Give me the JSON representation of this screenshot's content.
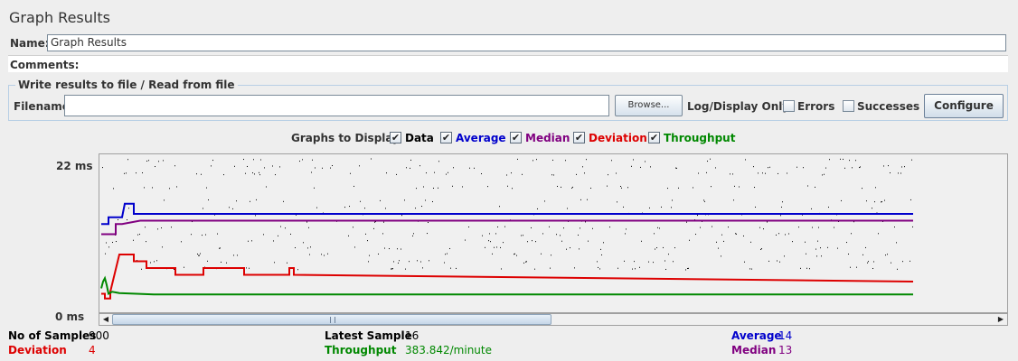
{
  "panel": {
    "title": "Graph Results",
    "name_label": "Name:",
    "name_value": "Graph Results",
    "comments_label": "Comments:"
  },
  "file": {
    "legend": "Write results to file / Read from file",
    "filename_label": "Filename",
    "filename_value": "",
    "browse_label": "Browse...",
    "log_display_label": "Log/Display Only:",
    "errors_label": "Errors",
    "errors_checked": false,
    "successes_label": "Successes",
    "successes_checked": false,
    "configure_label": "Configure"
  },
  "graphs_to_display": {
    "label": "Graphs to Display",
    "items": [
      {
        "label": "Data",
        "checked": true,
        "color": "#000000"
      },
      {
        "label": "Average",
        "checked": true,
        "color": "#0000cc"
      },
      {
        "label": "Median",
        "checked": true,
        "color": "#800080"
      },
      {
        "label": "Deviation",
        "checked": true,
        "color": "#dd0000"
      },
      {
        "label": "Throughput",
        "checked": true,
        "color": "#008800"
      }
    ]
  },
  "chart_data": {
    "type": "scatter",
    "y_top_label": "22 ms",
    "y_bottom_label": "0 ms",
    "ylim": [
      0,
      22
    ],
    "data_levels_ms": [
      6,
      7,
      8,
      9,
      10,
      11,
      12,
      13,
      14,
      15,
      16,
      18,
      20,
      21,
      22
    ],
    "series": [
      {
        "name": "Average",
        "color": "#0000cc",
        "final_value": 14
      },
      {
        "name": "Median",
        "color": "#800080",
        "final_value": 13
      },
      {
        "name": "Deviation",
        "color": "#dd0000",
        "final_value": 4
      },
      {
        "name": "Throughput",
        "color": "#008800",
        "final_value": 383.842
      }
    ]
  },
  "stats": {
    "samples_label": "No of Samples",
    "samples_value": "900",
    "latest_label": "Latest Sample",
    "latest_value": "16",
    "average_label": "Average",
    "average_value": "14",
    "deviation_label": "Deviation",
    "deviation_value": "4",
    "throughput_label": "Throughput",
    "throughput_value": "383.842/minute",
    "median_label": "Median",
    "median_value": "13"
  },
  "colors": {
    "average": "#0000cc",
    "median": "#800080",
    "deviation": "#dd0000",
    "throughput": "#008800"
  }
}
